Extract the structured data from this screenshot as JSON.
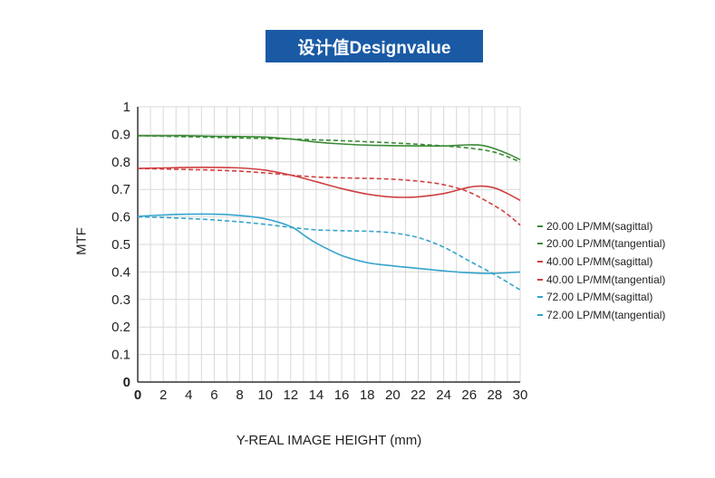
{
  "header": {
    "title": "设计值Designvalue"
  },
  "chart_data": {
    "type": "line",
    "title": "设计值Designvalue",
    "xlabel": "Y-REAL IMAGE HEIGHT (mm)",
    "ylabel": "MTF",
    "xlim": [
      0,
      30
    ],
    "ylim": [
      0,
      1
    ],
    "x_ticks": [
      "0",
      "2",
      "4",
      "6",
      "8",
      "10",
      "12",
      "14",
      "16",
      "18",
      "20",
      "22",
      "24",
      "26",
      "28",
      "30"
    ],
    "y_ticks": [
      "0",
      "0.1",
      "0.2",
      "0.3",
      "0.4",
      "0.5",
      "0.6",
      "0.7",
      "0.8",
      "0.9",
      "1"
    ],
    "grid": true,
    "legend_position": "right",
    "series": [
      {
        "name": "20.00 LP/MM(sagittal)",
        "color": "#3a8a35",
        "dash": false,
        "x": [
          0,
          2,
          4,
          6,
          8,
          10,
          12,
          14,
          16,
          18,
          20,
          22,
          24,
          26,
          27,
          28,
          29,
          30
        ],
        "y": [
          0.895,
          0.895,
          0.895,
          0.893,
          0.892,
          0.89,
          0.883,
          0.872,
          0.865,
          0.861,
          0.859,
          0.858,
          0.858,
          0.862,
          0.86,
          0.848,
          0.83,
          0.808
        ]
      },
      {
        "name": "20.00 LP/MM(tangential)",
        "color": "#3a8a35",
        "dash": true,
        "x": [
          0,
          2,
          4,
          6,
          8,
          10,
          12,
          14,
          16,
          18,
          20,
          22,
          24,
          26,
          28,
          30
        ],
        "y": [
          0.895,
          0.893,
          0.891,
          0.889,
          0.887,
          0.885,
          0.883,
          0.88,
          0.877,
          0.873,
          0.869,
          0.864,
          0.858,
          0.85,
          0.835,
          0.8
        ]
      },
      {
        "name": "40.00 LP/MM(sagittal)",
        "color": "#d04040",
        "dash": false,
        "x": [
          0,
          2,
          4,
          6,
          8,
          10,
          12,
          14,
          16,
          18,
          20,
          22,
          24,
          26,
          27,
          28,
          29,
          30
        ],
        "y": [
          0.776,
          0.778,
          0.78,
          0.78,
          0.778,
          0.77,
          0.752,
          0.728,
          0.703,
          0.683,
          0.672,
          0.673,
          0.685,
          0.708,
          0.712,
          0.705,
          0.685,
          0.66
        ]
      },
      {
        "name": "40.00 LP/MM(tangential)",
        "color": "#d04040",
        "dash": true,
        "x": [
          0,
          2,
          4,
          6,
          8,
          10,
          12,
          14,
          16,
          18,
          20,
          22,
          24,
          26,
          28,
          29,
          30
        ],
        "y": [
          0.776,
          0.774,
          0.772,
          0.77,
          0.766,
          0.76,
          0.752,
          0.745,
          0.742,
          0.74,
          0.737,
          0.73,
          0.717,
          0.69,
          0.64,
          0.61,
          0.57
        ]
      },
      {
        "name": "72.00 LP/MM(sagittal)",
        "color": "#35a4cd",
        "dash": false,
        "x": [
          0,
          2,
          4,
          6,
          8,
          10,
          12,
          13,
          14,
          16,
          18,
          20,
          22,
          24,
          26,
          28,
          30
        ],
        "y": [
          0.602,
          0.607,
          0.61,
          0.61,
          0.605,
          0.593,
          0.565,
          0.535,
          0.505,
          0.46,
          0.434,
          0.422,
          0.413,
          0.404,
          0.397,
          0.395,
          0.4
        ]
      },
      {
        "name": "72.00 LP/MM(tangential)",
        "color": "#35a4cd",
        "dash": true,
        "x": [
          0,
          2,
          4,
          6,
          8,
          10,
          12,
          14,
          16,
          18,
          20,
          22,
          24,
          26,
          28,
          30
        ],
        "y": [
          0.6,
          0.598,
          0.594,
          0.589,
          0.582,
          0.573,
          0.562,
          0.553,
          0.55,
          0.548,
          0.542,
          0.525,
          0.49,
          0.44,
          0.39,
          0.335
        ]
      }
    ]
  }
}
